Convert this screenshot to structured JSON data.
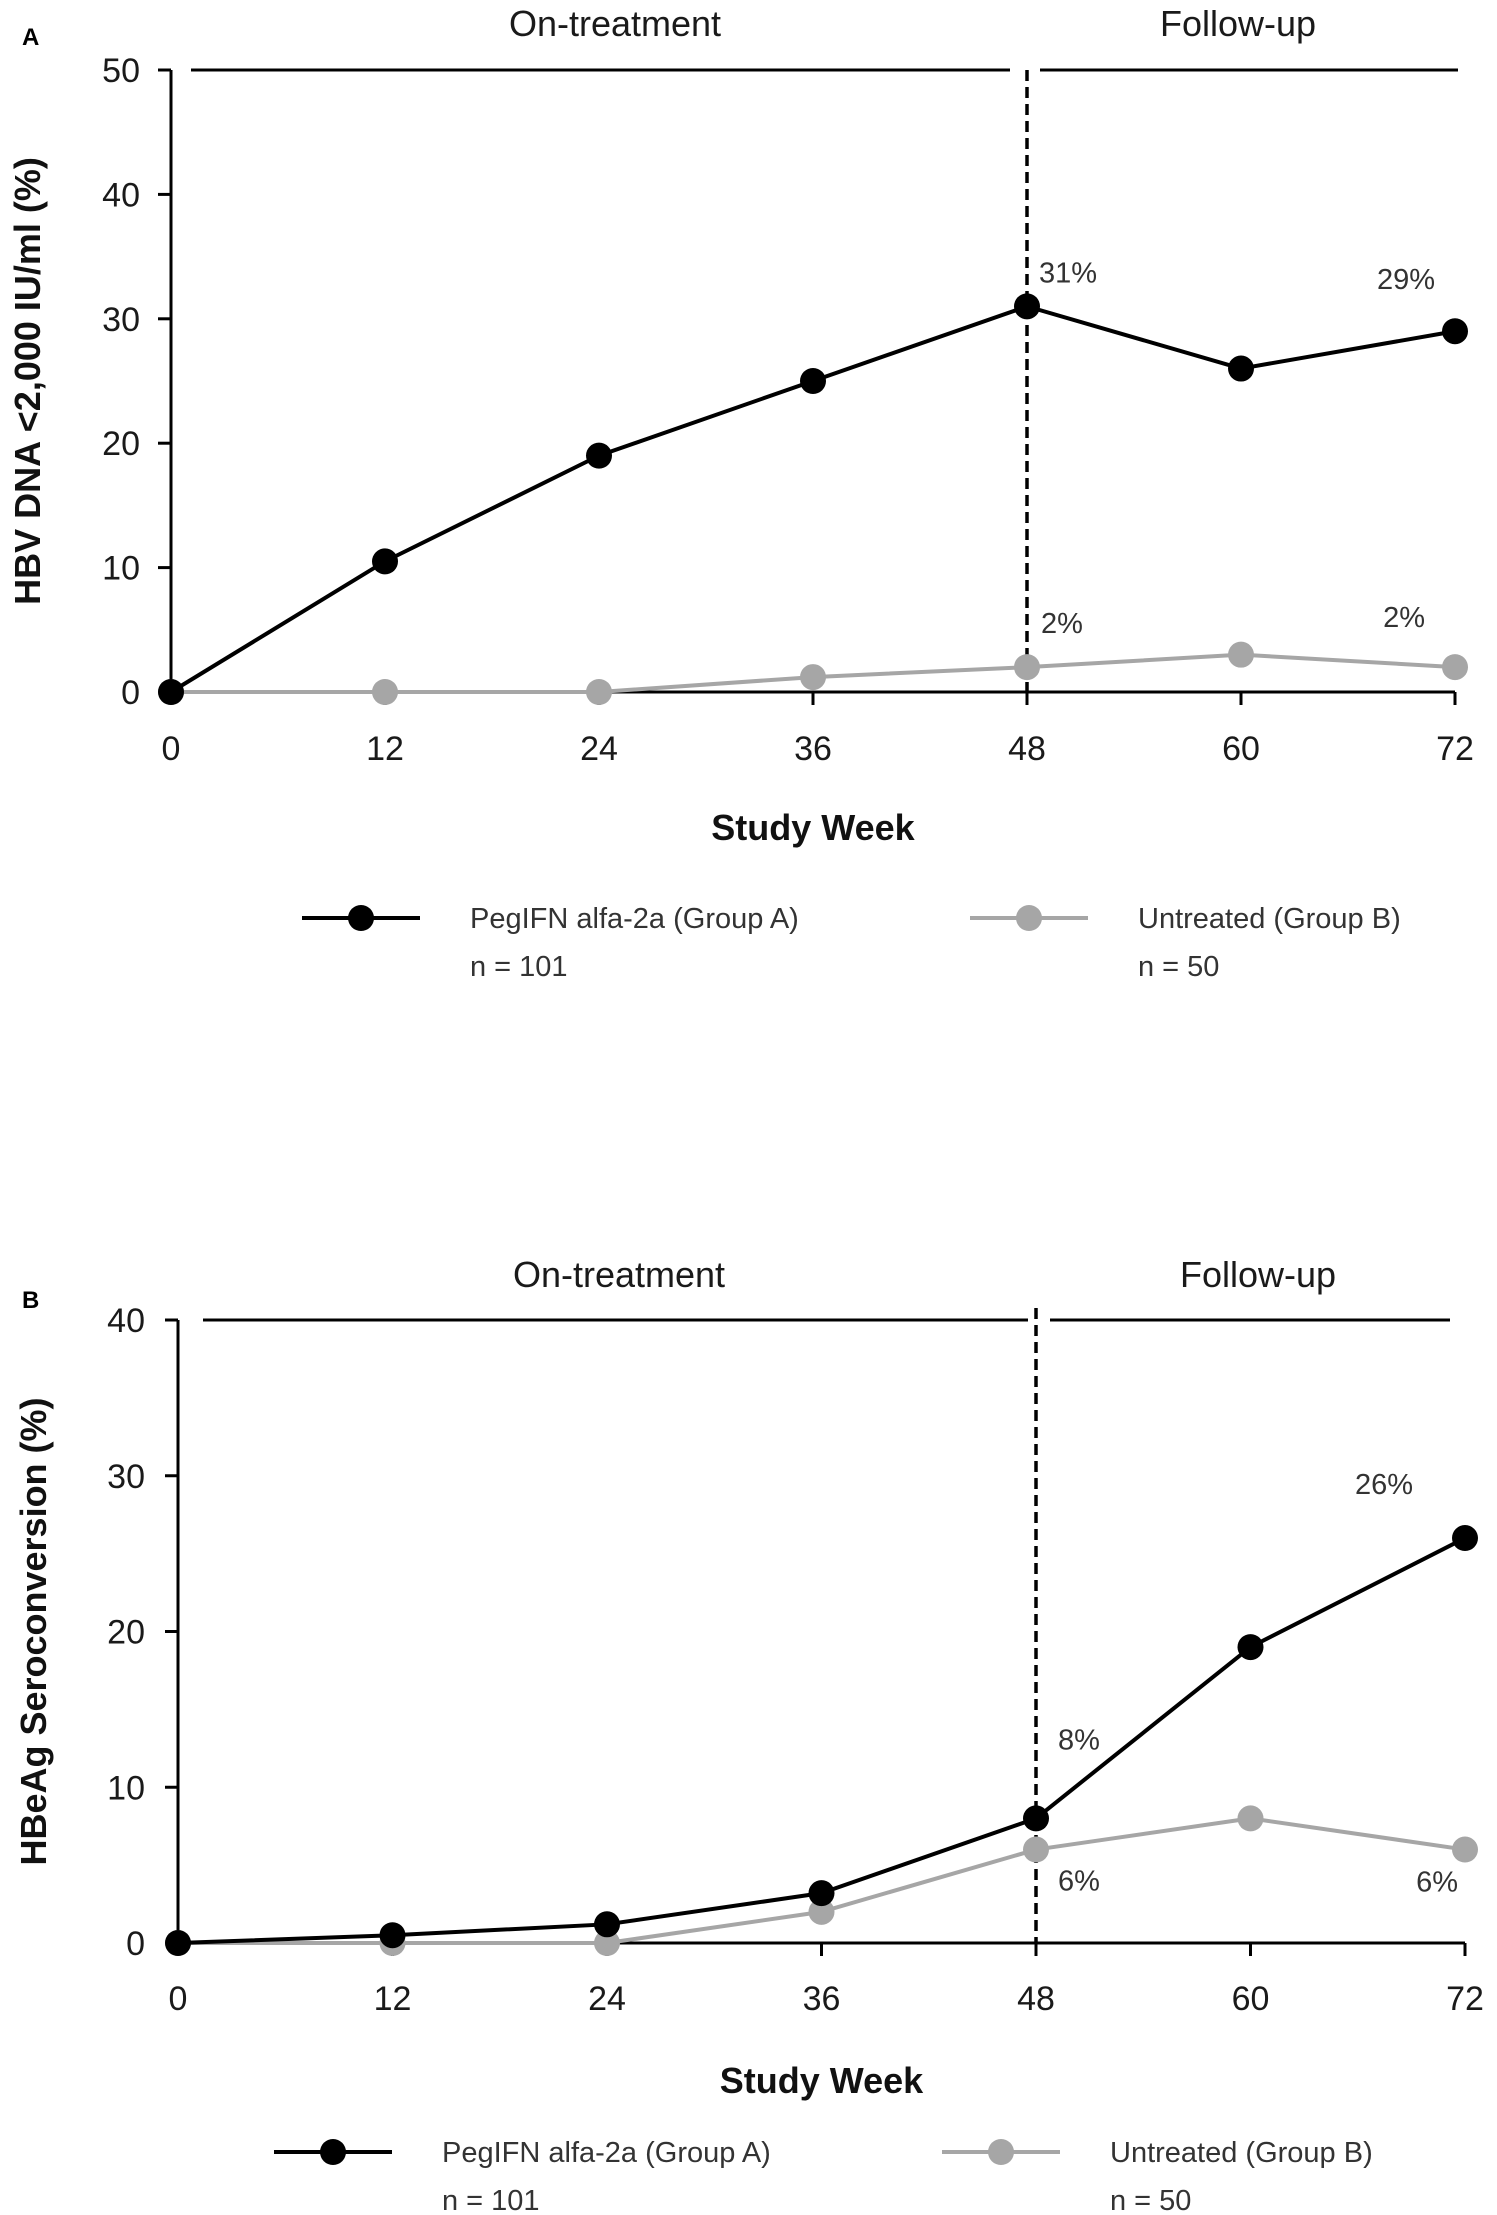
{
  "chart_data": [
    {
      "panel": "A",
      "type": "line",
      "phases": [
        "On-treatment",
        "Follow-up"
      ],
      "xlabel": "Study Week",
      "ylabel": "HBV DNA <2,000 IU/ml (%)",
      "x": [
        0,
        12,
        24,
        36,
        48,
        60,
        72
      ],
      "xticks": [
        "0",
        "12",
        "24",
        "36",
        "48",
        "60",
        "72"
      ],
      "ylim": [
        0,
        50
      ],
      "yticks": [
        "0",
        "10",
        "20",
        "30",
        "40",
        "50"
      ],
      "treatment_end_week": 48,
      "series": [
        {
          "name": "PegIFN alfa-2a (Group A)",
          "n": "n = 101",
          "color": "#000000",
          "values": [
            0,
            10.5,
            19,
            25,
            31,
            26,
            29
          ]
        },
        {
          "name": "Untreated (Group B)",
          "n": "n = 50",
          "color": "#a6a6a6",
          "values": [
            0,
            0,
            0,
            1.2,
            2,
            3,
            2
          ]
        }
      ],
      "annotations": [
        {
          "text": "31%",
          "series": 0,
          "x": 48,
          "y": 31
        },
        {
          "text": "29%",
          "series": 0,
          "x": 72,
          "y": 29
        },
        {
          "text": "2%",
          "series": 1,
          "x": 48,
          "y": 2
        },
        {
          "text": "2%",
          "series": 1,
          "x": 72,
          "y": 2
        }
      ],
      "legend_position": "bottom"
    },
    {
      "panel": "B",
      "type": "line",
      "phases": [
        "On-treatment",
        "Follow-up"
      ],
      "xlabel": "Study Week",
      "ylabel": "HBeAg Seroconversion (%)",
      "x": [
        0,
        12,
        24,
        36,
        48,
        60,
        72
      ],
      "xticks": [
        "0",
        "12",
        "24",
        "36",
        "48",
        "60",
        "72"
      ],
      "ylim": [
        0,
        40
      ],
      "yticks": [
        "0",
        "10",
        "20",
        "30",
        "40"
      ],
      "treatment_end_week": 48,
      "series": [
        {
          "name": "PegIFN alfa-2a (Group A)",
          "n": "n = 101",
          "color": "#000000",
          "values": [
            0,
            0.5,
            1.2,
            3.2,
            8,
            19,
            26
          ]
        },
        {
          "name": "Untreated (Group B)",
          "n": "n = 50",
          "color": "#a6a6a6",
          "values": [
            0,
            0,
            0,
            2,
            6,
            8,
            6
          ]
        }
      ],
      "annotations": [
        {
          "text": "8%",
          "series": 0,
          "x": 48,
          "y": 8
        },
        {
          "text": "26%",
          "series": 0,
          "x": 72,
          "y": 26
        },
        {
          "text": "6%",
          "series": 1,
          "x": 48,
          "y": 6
        },
        {
          "text": "6%",
          "series": 1,
          "x": 72,
          "y": 6
        }
      ],
      "legend_position": "bottom"
    }
  ]
}
